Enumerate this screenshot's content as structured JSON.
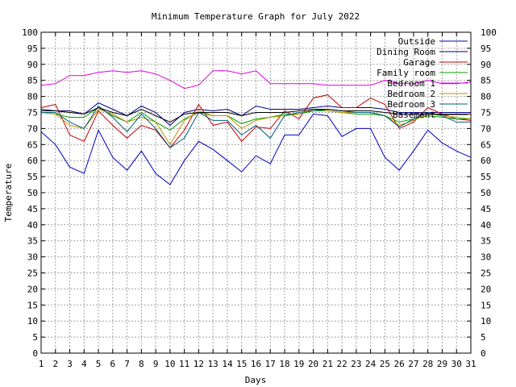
{
  "chart_data": {
    "type": "line",
    "title": "Minimum Temperature Graph for July 2022",
    "xlabel": "Days",
    "ylabel": "Temperature",
    "xlim": [
      1,
      31
    ],
    "ylim": [
      0,
      100
    ],
    "yticks_step": 5,
    "grid": true,
    "legend_position": "top-right",
    "x": [
      1,
      2,
      3,
      4,
      5,
      6,
      7,
      8,
      9,
      10,
      11,
      12,
      13,
      14,
      15,
      16,
      17,
      18,
      19,
      20,
      21,
      22,
      23,
      24,
      25,
      26,
      27,
      28,
      29,
      30,
      31
    ],
    "series": [
      {
        "name": "Outside",
        "color": "#0000c0",
        "values": [
          69,
          65,
          58,
          56,
          69.5,
          61,
          57,
          63,
          56,
          52.5,
          60,
          66,
          63.5,
          60,
          56.5,
          61.5,
          59,
          68,
          68,
          74.5,
          74,
          67.5,
          70,
          70,
          61,
          57,
          63,
          69.5,
          65.5,
          63,
          61
        ]
      },
      {
        "name": "Dining Room",
        "color": "#000080",
        "values": [
          76,
          75.5,
          75.5,
          74.5,
          78,
          76,
          74,
          77,
          75,
          71,
          75,
          76,
          75.5,
          76,
          74,
          77,
          76,
          76,
          76,
          76.5,
          77,
          76.5,
          76.5,
          76.5,
          76,
          75,
          75,
          75,
          75,
          75,
          75
        ]
      },
      {
        "name": "Garage",
        "color": "#c00000",
        "values": [
          76.5,
          77.5,
          68,
          66,
          75.5,
          71,
          67,
          71,
          69.5,
          64,
          69.5,
          77.5,
          71,
          72,
          66,
          70.5,
          70,
          75.5,
          73,
          79.5,
          80.5,
          76.5,
          76.5,
          79.5,
          77.5,
          70,
          72,
          76.5,
          74.5,
          73,
          72.5
        ]
      },
      {
        "name": "Family room",
        "color": "#00a000",
        "values": [
          75,
          74.5,
          73.5,
          73.5,
          76.5,
          74,
          72,
          75,
          72,
          69.5,
          73,
          75,
          74,
          74,
          71.5,
          73,
          73.5,
          74.5,
          74.5,
          75.5,
          75.5,
          75,
          74.5,
          74.5,
          74,
          72,
          73,
          74,
          73.5,
          73,
          73
        ]
      },
      {
        "name": "Bedroom 1",
        "color": "#e000e0",
        "values": [
          83.5,
          84,
          86.5,
          86.5,
          87.5,
          88,
          87.5,
          88,
          87,
          85,
          82.5,
          83.5,
          88,
          88,
          87,
          88,
          84,
          84,
          84,
          84,
          83.5,
          83.5,
          83.5,
          83.5,
          85,
          84,
          84,
          85,
          84,
          84,
          84.5
        ]
      },
      {
        "name": "Bedroom 2",
        "color": "#c09000",
        "values": [
          75,
          74.5,
          71,
          70,
          76,
          74.5,
          72,
          73.5,
          72,
          65,
          72.5,
          75.5,
          74,
          74,
          70,
          72.5,
          73.5,
          74,
          74.5,
          76,
          75.5,
          75,
          75,
          75,
          74,
          71,
          72.5,
          74.5,
          74,
          73.5,
          73
        ]
      },
      {
        "name": "Bedroom 3",
        "color": "#006080",
        "values": [
          75,
          75,
          72,
          70,
          77,
          73.5,
          69,
          74.5,
          70,
          64,
          67,
          75,
          72.5,
          72.5,
          68,
          71,
          67,
          74,
          75,
          75.5,
          76,
          75.5,
          75,
          75,
          74,
          70.5,
          73,
          75,
          74,
          72,
          72
        ]
      },
      {
        "name": "Basement",
        "color": "#000000",
        "values": [
          75.5,
          75.5,
          75,
          74.5,
          76.5,
          75,
          74,
          76,
          74,
          72,
          74.5,
          75,
          75,
          75,
          74,
          75,
          75,
          75,
          75.5,
          76,
          76,
          75.5,
          75.5,
          75.5,
          75,
          74.5,
          74.5,
          74.5,
          74.5,
          74.5,
          74.5
        ]
      }
    ]
  }
}
